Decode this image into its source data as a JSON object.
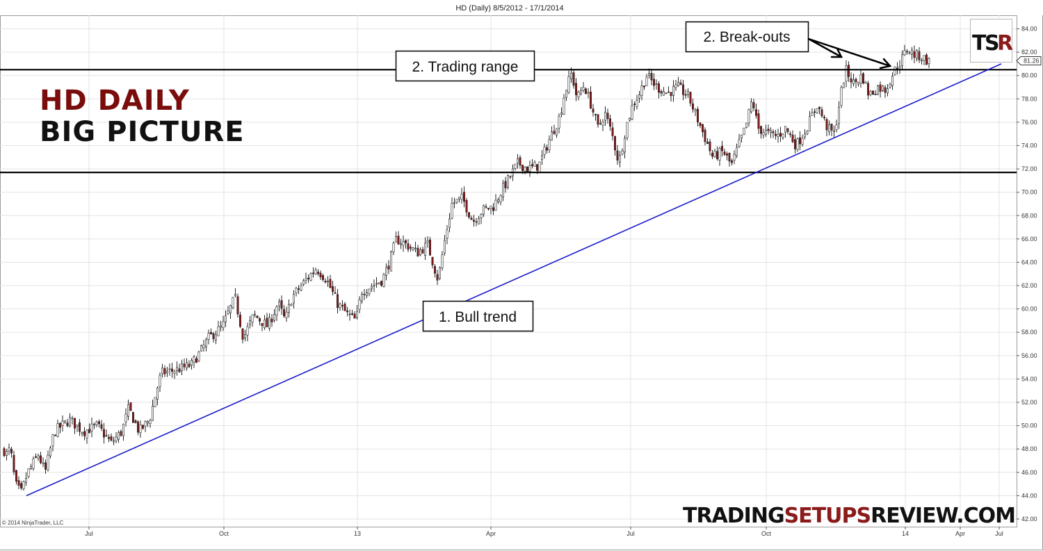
{
  "chart_data": {
    "type": "candlestick",
    "title": "HD (Daily)  8/5/2012 - 17/1/2014",
    "ylim": [
      42,
      84
    ],
    "y_ticks": [
      "84.00",
      "82.00",
      "80.00",
      "78.00",
      "76.00",
      "74.00",
      "72.00",
      "70.00",
      "68.00",
      "66.00",
      "64.00",
      "62.00",
      "60.00",
      "58.00",
      "56.00",
      "54.00",
      "52.00",
      "50.00",
      "48.00",
      "46.00",
      "44.00",
      "42.00"
    ],
    "x_ticks": [
      "Jul",
      "Oct",
      "13",
      "Apr",
      "Jul",
      "Oct",
      "14",
      "Apr",
      "Jul"
    ],
    "last_price": "81.26",
    "grid": true,
    "up_color": "#ffffff",
    "down_color": "#8b1a1a",
    "price_path": [
      {
        "x": 0,
        "close": 49.0
      },
      {
        "x": 8,
        "close": 47.5
      },
      {
        "x": 15,
        "close": 48.0
      },
      {
        "x": 22,
        "close": 45.0
      },
      {
        "x": 30,
        "close": 44.2
      },
      {
        "x": 40,
        "close": 46.0
      },
      {
        "x": 55,
        "close": 47.5
      },
      {
        "x": 65,
        "close": 46.0
      },
      {
        "x": 78,
        "close": 49.5
      },
      {
        "x": 100,
        "close": 50.5
      },
      {
        "x": 120,
        "close": 49.5
      },
      {
        "x": 140,
        "close": 50.0
      },
      {
        "x": 160,
        "close": 48.5
      },
      {
        "x": 175,
        "close": 49.5
      },
      {
        "x": 185,
        "close": 51.5
      },
      {
        "x": 200,
        "close": 49.5
      },
      {
        "x": 215,
        "close": 50.5
      },
      {
        "x": 225,
        "close": 53.0
      },
      {
        "x": 232,
        "close": 54.5
      },
      {
        "x": 255,
        "close": 54.8
      },
      {
        "x": 275,
        "close": 55.2
      },
      {
        "x": 290,
        "close": 56.5
      },
      {
        "x": 300,
        "close": 57.5
      },
      {
        "x": 320,
        "close": 58.5
      },
      {
        "x": 338,
        "close": 61.0
      },
      {
        "x": 350,
        "close": 57.5
      },
      {
        "x": 365,
        "close": 59.5
      },
      {
        "x": 385,
        "close": 58.5
      },
      {
        "x": 400,
        "close": 60.5
      },
      {
        "x": 410,
        "close": 59.0
      },
      {
        "x": 420,
        "close": 61.0
      },
      {
        "x": 440,
        "close": 62.5
      },
      {
        "x": 455,
        "close": 63.5
      },
      {
        "x": 470,
        "close": 62.5
      },
      {
        "x": 485,
        "close": 60.5
      },
      {
        "x": 500,
        "close": 59.5
      },
      {
        "x": 512,
        "close": 59.0
      },
      {
        "x": 520,
        "close": 61.5
      },
      {
        "x": 535,
        "close": 62.0
      },
      {
        "x": 550,
        "close": 62.5
      },
      {
        "x": 560,
        "close": 64.0
      },
      {
        "x": 570,
        "close": 66.0
      },
      {
        "x": 585,
        "close": 65.5
      },
      {
        "x": 600,
        "close": 64.8
      },
      {
        "x": 615,
        "close": 65.5
      },
      {
        "x": 630,
        "close": 62.5
      },
      {
        "x": 640,
        "close": 66.0
      },
      {
        "x": 650,
        "close": 69.0
      },
      {
        "x": 665,
        "close": 69.5
      },
      {
        "x": 680,
        "close": 67.5
      },
      {
        "x": 695,
        "close": 68.5
      },
      {
        "x": 710,
        "close": 68.8
      },
      {
        "x": 720,
        "close": 70.0
      },
      {
        "x": 735,
        "close": 71.5
      },
      {
        "x": 745,
        "close": 72.5
      },
      {
        "x": 760,
        "close": 72.0
      },
      {
        "x": 775,
        "close": 72.3
      },
      {
        "x": 790,
        "close": 74.5
      },
      {
        "x": 805,
        "close": 76.5
      },
      {
        "x": 812,
        "close": 78.5
      },
      {
        "x": 822,
        "close": 80.2
      },
      {
        "x": 830,
        "close": 78.0
      },
      {
        "x": 840,
        "close": 79.2
      },
      {
        "x": 850,
        "close": 77.5
      },
      {
        "x": 860,
        "close": 75.5
      },
      {
        "x": 870,
        "close": 76.8
      },
      {
        "x": 880,
        "close": 75.0
      },
      {
        "x": 890,
        "close": 72.5
      },
      {
        "x": 900,
        "close": 75.5
      },
      {
        "x": 910,
        "close": 77.5
      },
      {
        "x": 920,
        "close": 78.5
      },
      {
        "x": 930,
        "close": 80.0
      },
      {
        "x": 945,
        "close": 79.0
      },
      {
        "x": 960,
        "close": 78.5
      },
      {
        "x": 975,
        "close": 79.0
      },
      {
        "x": 990,
        "close": 78.2
      },
      {
        "x": 1005,
        "close": 76.0
      },
      {
        "x": 1015,
        "close": 74.5
      },
      {
        "x": 1025,
        "close": 73.0
      },
      {
        "x": 1040,
        "close": 73.5
      },
      {
        "x": 1052,
        "close": 72.3
      },
      {
        "x": 1062,
        "close": 74.0
      },
      {
        "x": 1072,
        "close": 75.5
      },
      {
        "x": 1082,
        "close": 78.0
      },
      {
        "x": 1090,
        "close": 75.5
      },
      {
        "x": 1105,
        "close": 75.0
      },
      {
        "x": 1118,
        "close": 74.8
      },
      {
        "x": 1130,
        "close": 75.5
      },
      {
        "x": 1145,
        "close": 74.0
      },
      {
        "x": 1160,
        "close": 75.5
      },
      {
        "x": 1175,
        "close": 77.5
      },
      {
        "x": 1190,
        "close": 75.5
      },
      {
        "x": 1200,
        "close": 75.0
      },
      {
        "x": 1208,
        "close": 78.0
      },
      {
        "x": 1216,
        "close": 80.5
      },
      {
        "x": 1228,
        "close": 79.3
      },
      {
        "x": 1240,
        "close": 80.0
      },
      {
        "x": 1250,
        "close": 78.3
      },
      {
        "x": 1262,
        "close": 79.0
      },
      {
        "x": 1274,
        "close": 78.8
      },
      {
        "x": 1285,
        "close": 80.3
      },
      {
        "x": 1295,
        "close": 81.2
      },
      {
        "x": 1305,
        "close": 82.3
      },
      {
        "x": 1315,
        "close": 81.8
      },
      {
        "x": 1325,
        "close": 81.6
      },
      {
        "x": 1338,
        "close": 81.1
      }
    ],
    "lines": [
      {
        "name": "trading-range-top",
        "kind": "horizontal",
        "y": 80.5,
        "color": "#000000"
      },
      {
        "name": "trading-range-bottom",
        "kind": "horizontal",
        "y": 71.7,
        "color": "#000000"
      },
      {
        "name": "bull-trendline",
        "kind": "trend",
        "from": {
          "x": 38,
          "y": 44.0
        },
        "to": {
          "x": 1440,
          "y": 81.0
        },
        "color": "#1a1acc"
      }
    ],
    "annotations": [
      {
        "name": "bull-trend-callout",
        "text": "1. Bull trend"
      },
      {
        "name": "trading-range-callout",
        "text": "2. Trading range"
      },
      {
        "name": "breakouts-callout",
        "text": "2. Break-outs"
      }
    ],
    "headline": {
      "line1": "HD DAILY",
      "line2": "BIG PICTURE",
      "line1_color": "#7a0c0c",
      "line2_color": "#111111"
    },
    "watermark": {
      "part1": "TRADING",
      "part2": "SETUPS",
      "part3": "REVIEW.COM",
      "accent_color": "#8b1a1a"
    },
    "logo": {
      "t": "T",
      "s": "S",
      "r": "R",
      "accent_color": "#8b1a1a"
    },
    "copyright": "© 2014 NinjaTrader, LLC"
  }
}
